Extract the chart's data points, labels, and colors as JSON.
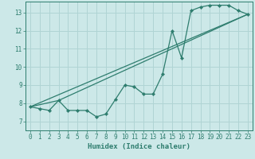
{
  "background_color": "#cce8e8",
  "grid_color": "#b0d4d4",
  "line_color": "#2e7d6e",
  "xlabel": "Humidex (Indice chaleur)",
  "xlim": [
    -0.5,
    23.5
  ],
  "ylim": [
    6.5,
    13.6
  ],
  "xticks": [
    0,
    1,
    2,
    3,
    4,
    5,
    6,
    7,
    8,
    9,
    10,
    11,
    12,
    13,
    14,
    15,
    16,
    17,
    18,
    19,
    20,
    21,
    22,
    23
  ],
  "yticks": [
    7,
    8,
    9,
    10,
    11,
    12,
    13
  ],
  "line1_x": [
    0,
    1,
    2,
    3,
    4,
    5,
    6,
    7,
    8,
    9,
    10,
    11,
    12,
    13,
    14,
    15,
    16,
    17,
    18,
    19,
    20,
    21,
    22,
    23
  ],
  "line1_y": [
    7.8,
    7.7,
    7.6,
    8.15,
    7.6,
    7.6,
    7.6,
    7.25,
    7.4,
    8.2,
    9.0,
    8.9,
    8.5,
    8.5,
    9.6,
    12.0,
    10.5,
    13.1,
    13.3,
    13.4,
    13.4,
    13.4,
    13.1,
    12.9
  ],
  "line2_x": [
    0,
    3,
    23
  ],
  "line2_y": [
    7.8,
    8.15,
    12.9
  ],
  "line3_x": [
    0,
    23
  ],
  "line3_y": [
    7.8,
    12.9
  ]
}
